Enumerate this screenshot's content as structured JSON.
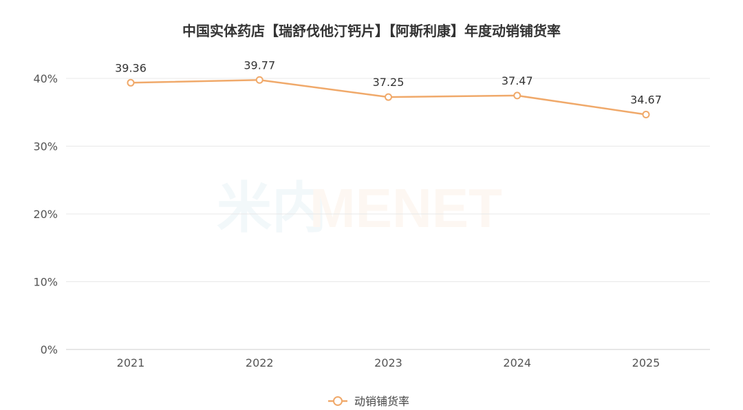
{
  "watermark": {
    "cn": "米内",
    "en": "MENET"
  },
  "chart_data": {
    "type": "line",
    "title": "中国实体药店【瑞舒伐他汀钙片】【阿斯利康】年度动销铺货率",
    "categories": [
      "2021",
      "2022",
      "2023",
      "2024",
      "2025"
    ],
    "series": [
      {
        "name": "动销铺货率",
        "values": [
          39.36,
          39.77,
          37.25,
          37.47,
          34.67
        ],
        "color": "#f0a96a"
      }
    ],
    "ylim": [
      0,
      40
    ],
    "yticks": [
      0,
      10,
      20,
      30,
      40
    ],
    "ytick_suffix": "%",
    "grid": true,
    "legend": "bottom"
  }
}
